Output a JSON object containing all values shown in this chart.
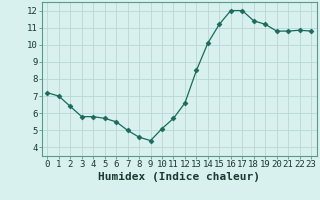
{
  "x": [
    0,
    1,
    2,
    3,
    4,
    5,
    6,
    7,
    8,
    9,
    10,
    11,
    12,
    13,
    14,
    15,
    16,
    17,
    18,
    19,
    20,
    21,
    22,
    23
  ],
  "y": [
    7.2,
    7.0,
    6.4,
    5.8,
    5.8,
    5.7,
    5.5,
    5.0,
    4.6,
    4.4,
    5.1,
    5.7,
    6.6,
    8.5,
    10.1,
    11.2,
    12.0,
    12.0,
    11.4,
    11.2,
    10.8,
    10.8,
    10.85,
    10.8
  ],
  "line_color": "#1a6b5a",
  "marker": "D",
  "marker_size": 2.5,
  "bg_color": "#d8f0ee",
  "grid_color": "#b8d8d4",
  "xlabel": "Humidex (Indice chaleur)",
  "xlim": [
    -0.5,
    23.5
  ],
  "ylim": [
    3.5,
    12.5
  ],
  "yticks": [
    4,
    5,
    6,
    7,
    8,
    9,
    10,
    11,
    12
  ],
  "xticks": [
    0,
    1,
    2,
    3,
    4,
    5,
    6,
    7,
    8,
    9,
    10,
    11,
    12,
    13,
    14,
    15,
    16,
    17,
    18,
    19,
    20,
    21,
    22,
    23
  ],
  "tick_fontsize": 6.5,
  "xlabel_fontsize": 8,
  "font_color": "#1a3a32"
}
